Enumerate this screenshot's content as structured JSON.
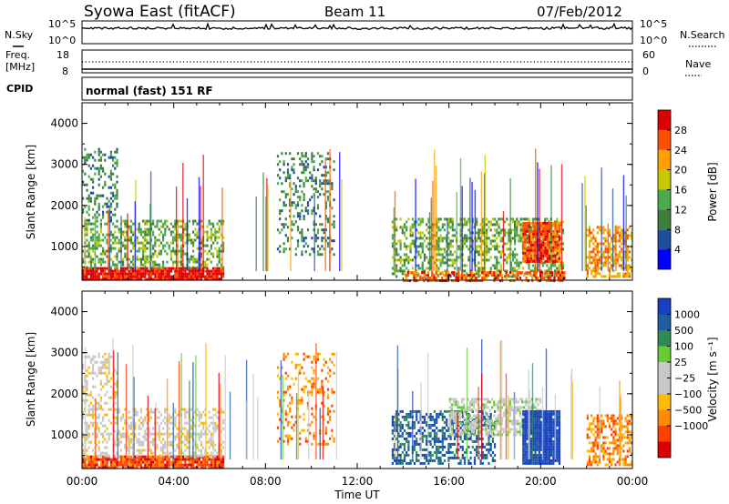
{
  "header": {
    "station": "Syowa East (fitACF)",
    "beam": "Beam 11",
    "date": "07/Feb/2012"
  },
  "panels": {
    "nsky_label": "N.Sky",
    "nsky_ticks": [
      "10^5",
      "10^0"
    ],
    "nsearch_label": "N.Search",
    "nsearch_ticks": [
      "10^5",
      "10^0"
    ],
    "freq_label_1": "Freq.",
    "freq_label_2": "[MHz]",
    "freq_ticks": [
      "18",
      "8"
    ],
    "nave_label": "Nave",
    "nave_ticks": [
      "60",
      "0"
    ],
    "cpid_label": "CPID",
    "cpid_text": "normal (fast) 151 RF"
  },
  "chart_data": [
    {
      "type": "heatmap",
      "name": "power",
      "ylabel": "Slant Range [km]",
      "y_ticks": [
        "1000",
        "2000",
        "3000",
        "4000"
      ],
      "ylim": [
        180,
        4500
      ],
      "colorbar_label": "Power [dB]",
      "colorbar_ticks": [
        "28",
        "24",
        "20",
        "16",
        "12",
        "8",
        "4"
      ],
      "colorbar_colors": [
        "#0000ff",
        "#1f4f9c",
        "#3e7f3e",
        "#4caa4c",
        "#c8c800",
        "#ffa000",
        "#ff5000",
        "#dd0000"
      ],
      "scatter_regions": [
        {
          "t0": 0.0,
          "t1": 6.2,
          "r0": 180,
          "r1": 500,
          "density": 0.95,
          "level": 7
        },
        {
          "t0": 0.0,
          "t1": 6.2,
          "r0": 500,
          "r1": 1650,
          "density": 0.45,
          "level": 3
        },
        {
          "t0": 0.0,
          "t1": 1.5,
          "r0": 1650,
          "r1": 3400,
          "density": 0.3,
          "level": 2
        },
        {
          "t0": 8.5,
          "t1": 11.0,
          "r0": 800,
          "r1": 3300,
          "density": 0.25,
          "level": 2
        },
        {
          "t0": 13.5,
          "t1": 21.0,
          "r0": 300,
          "r1": 1700,
          "density": 0.45,
          "level": 3
        },
        {
          "t0": 19.2,
          "t1": 20.8,
          "r0": 650,
          "r1": 1600,
          "density": 0.9,
          "level": 6
        },
        {
          "t0": 22.0,
          "t1": 24.0,
          "r0": 300,
          "r1": 1500,
          "density": 0.55,
          "level": 5
        },
        {
          "t0": 14.0,
          "t1": 21.0,
          "r0": 180,
          "r1": 400,
          "density": 0.6,
          "level": 6
        }
      ]
    },
    {
      "type": "heatmap",
      "name": "velocity",
      "xlabel": "Time UT",
      "x_ticks": [
        "00:00",
        "04:00",
        "08:00",
        "12:00",
        "16:00",
        "20:00",
        "00:00"
      ],
      "xlim": [
        0,
        24
      ],
      "ylabel": "Slant Range [km]",
      "y_ticks": [
        "1000",
        "2000",
        "3000",
        "4000"
      ],
      "ylim": [
        180,
        4500
      ],
      "colorbar_label": "Velocity [m s⁻¹]",
      "colorbar_ticks": [
        "1000",
        "500",
        "100",
        "25",
        "−25",
        "−100",
        "−500",
        "−1000"
      ],
      "colorbar_colors": [
        "#dd0000",
        "#ff4000",
        "#ff8c00",
        "#ffbb00",
        "#c8c8c8",
        "#c8c8c8",
        "#66cc33",
        "#2e8b57",
        "#1f5fa0",
        "#1a3fbf"
      ],
      "scatter_regions": [
        {
          "t0": 0.0,
          "t1": 6.2,
          "r0": 180,
          "r1": 500,
          "density": 0.9,
          "level": 1
        },
        {
          "t0": 0.0,
          "t1": 6.2,
          "r0": 500,
          "r1": 1650,
          "density": 0.4,
          "level": 4
        },
        {
          "t0": 0.0,
          "t1": 1.5,
          "r0": 1650,
          "r1": 3000,
          "density": 0.35,
          "level": 4
        },
        {
          "t0": 8.5,
          "t1": 11.0,
          "r0": 800,
          "r1": 3000,
          "density": 0.22,
          "level": 2
        },
        {
          "t0": 13.5,
          "t1": 18.0,
          "r0": 300,
          "r1": 1600,
          "density": 0.5,
          "level": 8
        },
        {
          "t0": 16.0,
          "t1": 20.0,
          "r0": 1000,
          "r1": 1900,
          "density": 0.55,
          "level": 5
        },
        {
          "t0": 19.2,
          "t1": 20.8,
          "r0": 300,
          "r1": 1600,
          "density": 0.95,
          "level": 9
        },
        {
          "t0": 22.0,
          "t1": 24.0,
          "r0": 300,
          "r1": 1500,
          "density": 0.5,
          "level": 2
        }
      ]
    }
  ]
}
